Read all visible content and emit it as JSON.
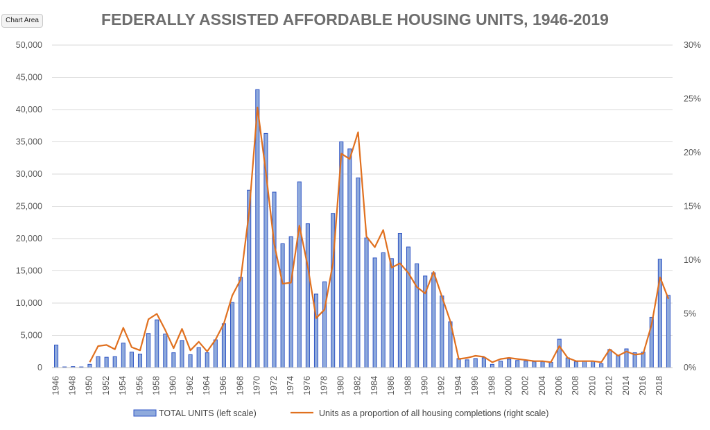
{
  "ui": {
    "chart_area_label": "Chart Area"
  },
  "colors": {
    "bar_fill": "#8FAADC",
    "bar_stroke": "#2F55C4",
    "line": "#E0701F",
    "grid": "#d9d9d9"
  },
  "chart_data": {
    "type": "bar",
    "title": "FEDERALLY ASSISTED AFFORDABLE HOUSING UNITS, 1946-2019",
    "xlabel": "",
    "ylabel": "",
    "ylim": [
      0,
      50000
    ],
    "y2lim": [
      0,
      30
    ],
    "y_ticks": [
      "0",
      "5,000",
      "10,000",
      "15,000",
      "20,000",
      "25,000",
      "30,000",
      "35,000",
      "40,000",
      "45,000",
      "50,000"
    ],
    "y2_ticks": [
      "0%",
      "5%",
      "10%",
      "15%",
      "20%",
      "25%",
      "30%"
    ],
    "x_tick_labels": [
      "1946",
      "1948",
      "1950",
      "1952",
      "1954",
      "1956",
      "1958",
      "1960",
      "1962",
      "1964",
      "1966",
      "1968",
      "1970",
      "1972",
      "1974",
      "1976",
      "1978",
      "1980",
      "1982",
      "1984",
      "1986",
      "1988",
      "1990",
      "1992",
      "1994",
      "1996",
      "1998",
      "2000",
      "2002",
      "2004",
      "2006",
      "2008",
      "2010",
      "2012",
      "2014",
      "2016",
      "2018"
    ],
    "legend": {
      "position": "bottom"
    },
    "categories": [
      1946,
      1947,
      1948,
      1949,
      1950,
      1951,
      1952,
      1953,
      1954,
      1955,
      1956,
      1957,
      1958,
      1959,
      1960,
      1961,
      1962,
      1963,
      1964,
      1965,
      1966,
      1967,
      1968,
      1969,
      1970,
      1971,
      1972,
      1973,
      1974,
      1975,
      1976,
      1977,
      1978,
      1979,
      1980,
      1981,
      1982,
      1983,
      1984,
      1985,
      1986,
      1987,
      1988,
      1989,
      1990,
      1991,
      1992,
      1993,
      1994,
      1995,
      1996,
      1997,
      1998,
      1999,
      2000,
      2001,
      2002,
      2003,
      2004,
      2005,
      2006,
      2007,
      2008,
      2009,
      2010,
      2011,
      2012,
      2013,
      2014,
      2015,
      2016,
      2017,
      2018,
      2019
    ],
    "series": [
      {
        "name": "TOTAL UNITS (left scale)",
        "kind": "bar",
        "axis": "left",
        "values": [
          3500,
          100,
          150,
          100,
          500,
          1700,
          1600,
          1700,
          3800,
          2400,
          2100,
          5300,
          7400,
          5200,
          2300,
          4200,
          2000,
          3100,
          2300,
          4300,
          6800,
          10100,
          14000,
          27500,
          43100,
          36300,
          27200,
          19200,
          20300,
          28800,
          22300,
          11400,
          13300,
          23900,
          35000,
          33900,
          29400,
          20100,
          17000,
          17800,
          16900,
          20800,
          18700,
          16100,
          14200,
          14700,
          11100,
          7100,
          1400,
          1200,
          1400,
          1500,
          500,
          1000,
          1300,
          1100,
          1000,
          900,
          900,
          800,
          4400,
          1500,
          900,
          1000,
          1000,
          600,
          2800,
          1900,
          2900,
          2300,
          2400,
          7800,
          16800,
          11200
        ]
      },
      {
        "name": "Units as a proportion of all housing completions (right scale)",
        "kind": "line",
        "axis": "right",
        "values": [
          null,
          null,
          null,
          null,
          0.5,
          2.0,
          2.1,
          1.7,
          3.7,
          1.9,
          1.6,
          4.5,
          5.0,
          3.5,
          1.8,
          3.6,
          1.6,
          2.4,
          1.5,
          2.6,
          4.1,
          6.7,
          8.2,
          14.4,
          24.2,
          18.2,
          11.5,
          7.8,
          7.9,
          13.2,
          9.4,
          4.6,
          5.4,
          9.7,
          19.9,
          19.4,
          21.9,
          12.2,
          11.2,
          12.8,
          9.3,
          9.7,
          8.8,
          7.5,
          6.9,
          8.9,
          6.6,
          4.3,
          0.8,
          0.9,
          1.1,
          1.0,
          0.5,
          0.8,
          0.9,
          0.8,
          0.7,
          0.6,
          0.6,
          0.5,
          2.0,
          0.9,
          0.6,
          0.6,
          0.6,
          0.5,
          1.7,
          1.1,
          1.5,
          1.2,
          1.3,
          4.0,
          8.4,
          6.4
        ]
      }
    ]
  }
}
